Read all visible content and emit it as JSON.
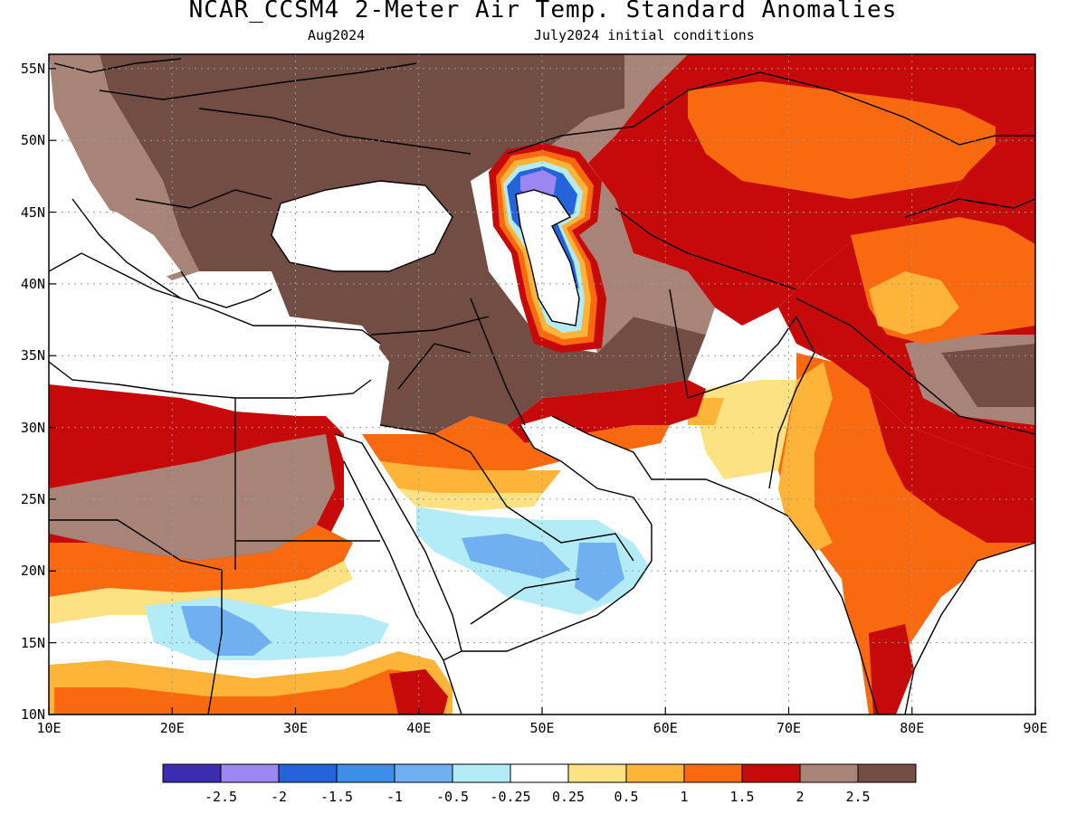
{
  "header": {
    "title": "NCAR_CCSM4 2-Meter Air Temp. Standard Anomalies",
    "subtitle_left": "Aug2024",
    "subtitle_right": "July2024 initial conditions"
  },
  "map": {
    "type": "contour-anomaly-map",
    "lon_range": [
      10,
      90
    ],
    "lat_range": [
      10,
      56
    ],
    "lon_ticks": [
      "10E",
      "20E",
      "30E",
      "40E",
      "50E",
      "60E",
      "70E",
      "80E",
      "90E"
    ],
    "lat_ticks": [
      "10N",
      "15N",
      "20N",
      "25N",
      "30N",
      "35N",
      "40N",
      "45N",
      "50N",
      "55N"
    ],
    "grid": true
  },
  "colorbar": {
    "colors": [
      "#3a2db0",
      "#9b86f2",
      "#2563db",
      "#3d8ee8",
      "#70b0f0",
      "#b3ecf6",
      "#ffffff",
      "#fde283",
      "#fdb438",
      "#f96a10",
      "#c60a0a",
      "#a88478",
      "#724d44"
    ],
    "labels": [
      "-2.5",
      "-2",
      "-1.5",
      "-1",
      "-0.5",
      "-0.25",
      "0.25",
      "0.5",
      "1",
      "1.5",
      "2",
      "2.5"
    ]
  }
}
